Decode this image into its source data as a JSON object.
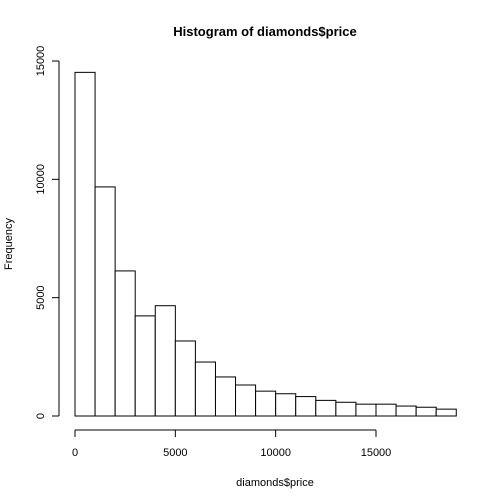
{
  "chart_data": {
    "type": "bar",
    "title": "Histogram of diamonds$price",
    "xlabel": "diamonds$price",
    "ylabel": "Frequency",
    "bin_width": 1000,
    "bins": [
      {
        "start": 0,
        "end": 1000,
        "count": 14520
      },
      {
        "start": 1000,
        "end": 2000,
        "count": 9680
      },
      {
        "start": 2000,
        "end": 3000,
        "count": 6130
      },
      {
        "start": 3000,
        "end": 4000,
        "count": 4230
      },
      {
        "start": 4000,
        "end": 5000,
        "count": 4660
      },
      {
        "start": 5000,
        "end": 6000,
        "count": 3170
      },
      {
        "start": 6000,
        "end": 7000,
        "count": 2280
      },
      {
        "start": 7000,
        "end": 8000,
        "count": 1650
      },
      {
        "start": 8000,
        "end": 9000,
        "count": 1310
      },
      {
        "start": 9000,
        "end": 10000,
        "count": 1050
      },
      {
        "start": 10000,
        "end": 11000,
        "count": 940
      },
      {
        "start": 11000,
        "end": 12000,
        "count": 820
      },
      {
        "start": 12000,
        "end": 13000,
        "count": 660
      },
      {
        "start": 13000,
        "end": 14000,
        "count": 580
      },
      {
        "start": 14000,
        "end": 15000,
        "count": 500
      },
      {
        "start": 15000,
        "end": 16000,
        "count": 500
      },
      {
        "start": 16000,
        "end": 17000,
        "count": 420
      },
      {
        "start": 17000,
        "end": 18000,
        "count": 370
      },
      {
        "start": 18000,
        "end": 19000,
        "count": 290
      }
    ],
    "xlim": [
      0,
      19000
    ],
    "ylim": [
      0,
      15000
    ],
    "x_ticks": [
      0,
      5000,
      10000,
      15000
    ],
    "y_ticks": [
      0,
      5000,
      10000,
      15000
    ],
    "grid": false,
    "bar_fill": "#ffffff",
    "bar_stroke": "#000000"
  }
}
